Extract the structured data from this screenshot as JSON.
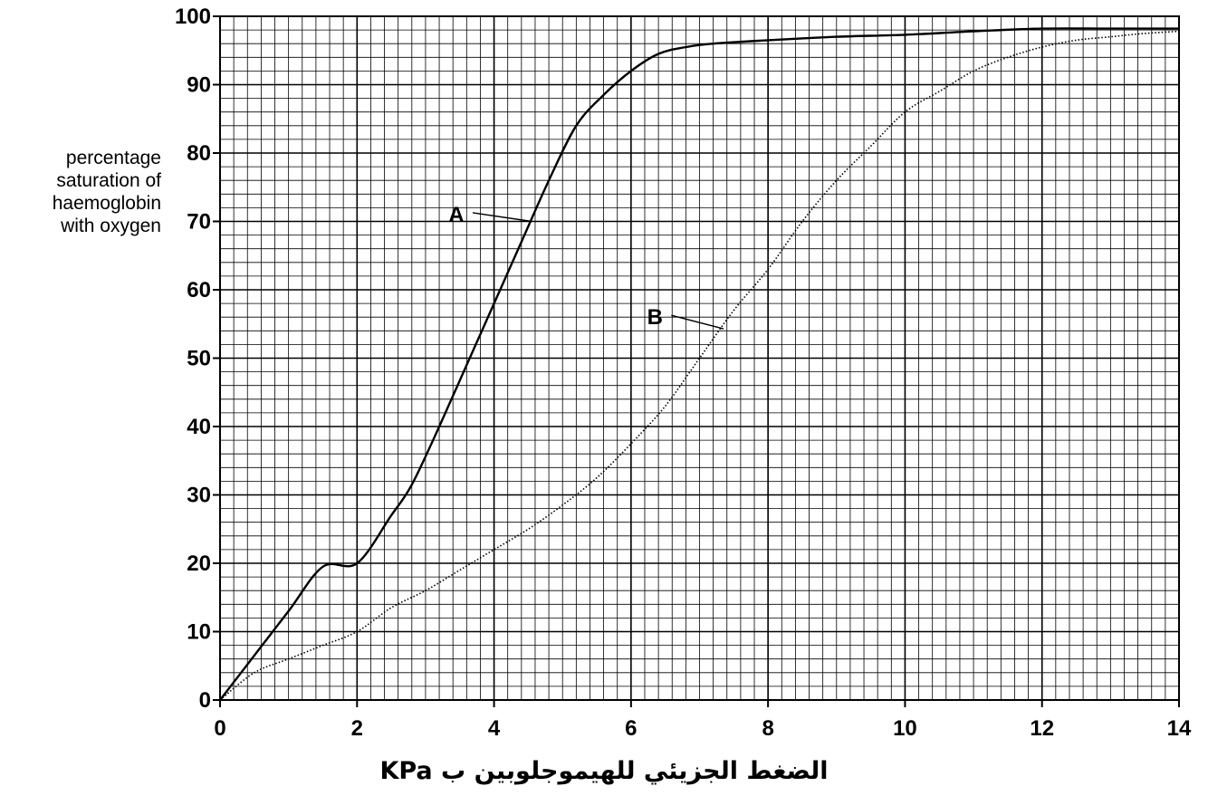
{
  "chart_data": {
    "type": "line",
    "xlabel": "الضغط الجزيئي للهيموجلوبين ب KPa",
    "ylabel_lines": [
      "percentage",
      "saturation of",
      "haemoglobin",
      "with oxygen"
    ],
    "xlim": [
      0,
      14
    ],
    "ylim": [
      0,
      100
    ],
    "x_ticks": [
      0,
      2,
      4,
      6,
      8,
      10,
      12,
      14
    ],
    "y_ticks": [
      0,
      10,
      20,
      30,
      40,
      50,
      60,
      70,
      80,
      90,
      100
    ],
    "grid": true,
    "grid_minor_x_step": 0.2,
    "grid_minor_y_step": 2,
    "series": [
      {
        "name": "A",
        "style": "solid",
        "x": [
          0,
          0.5,
          1,
          1.5,
          2,
          2.5,
          2.8,
          3.2,
          3.6,
          4,
          4.4,
          4.8,
          5.2,
          5.6,
          6,
          6.4,
          6.8,
          7.2,
          8,
          9,
          10,
          11,
          12,
          13,
          14
        ],
        "y": [
          0,
          6.5,
          13,
          19.5,
          20,
          27,
          31.5,
          40,
          49,
          58,
          67,
          76,
          84,
          88.5,
          92,
          94.5,
          95.5,
          96,
          96.5,
          97,
          97.3,
          97.8,
          98.2,
          98.2,
          98.2
        ]
      },
      {
        "name": "B",
        "style": "dotted",
        "x": [
          0,
          0.5,
          1,
          1.5,
          2,
          2.5,
          3,
          3.5,
          4,
          4.5,
          5,
          5.5,
          6,
          6.5,
          7,
          7.5,
          8,
          8.5,
          9,
          9.5,
          10,
          10.5,
          11,
          11.5,
          12,
          12.5,
          13,
          13.5,
          14
        ],
        "y": [
          0,
          4,
          6,
          8,
          10,
          13.5,
          16,
          19,
          22,
          25,
          28.5,
          32.5,
          37.5,
          43,
          50,
          57,
          63,
          70,
          76,
          81,
          86,
          89,
          92,
          94,
          95.5,
          96.5,
          97,
          97.5,
          97.8
        ]
      }
    ],
    "annotations": [
      {
        "label": "A",
        "series": "A",
        "text_at": [
          3.45,
          71
        ],
        "point_at": [
          4.55,
          70
        ]
      },
      {
        "label": "B",
        "series": "B",
        "text_at": [
          6.35,
          56
        ],
        "point_at": [
          7.35,
          54.3
        ]
      }
    ]
  }
}
